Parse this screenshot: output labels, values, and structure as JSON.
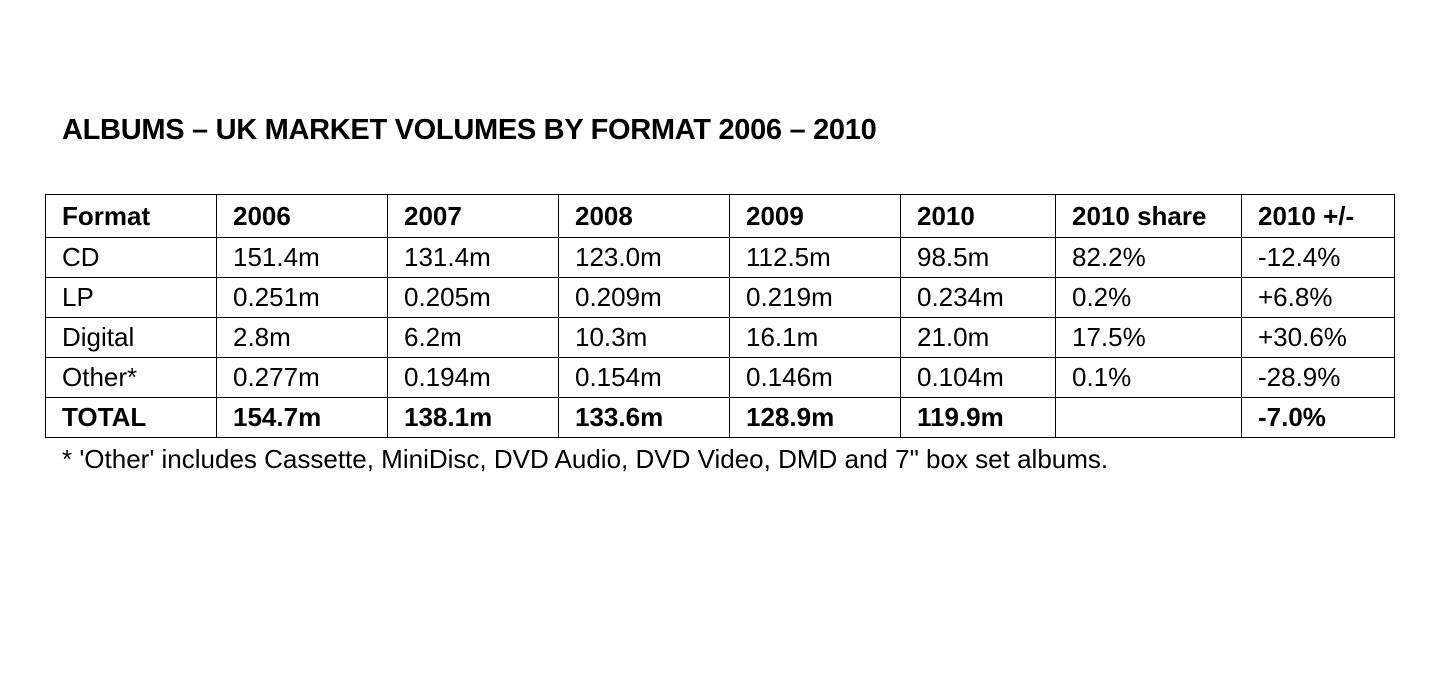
{
  "title": "ALBUMS – UK MARKET VOLUMES BY FORMAT 2006 – 2010",
  "table": {
    "headers": [
      "Format",
      "2006",
      "2007",
      "2008",
      "2009",
      "2010",
      "2010 share",
      "2010 +/-"
    ],
    "rows": [
      [
        "CD",
        "151.4m",
        "131.4m",
        "123.0m",
        "112.5m",
        "98.5m",
        "82.2%",
        "-12.4%"
      ],
      [
        "LP",
        "0.251m",
        "0.205m",
        "0.209m",
        "0.219m",
        "0.234m",
        "0.2%",
        "+6.8%"
      ],
      [
        "Digital",
        "2.8m",
        "6.2m",
        "10.3m",
        "16.1m",
        "21.0m",
        "17.5%",
        "+30.6%"
      ],
      [
        "Other*",
        "0.277m",
        "0.194m",
        "0.154m",
        "0.146m",
        "0.104m",
        "0.1%",
        "-28.9%"
      ]
    ],
    "total": [
      "TOTAL",
      "154.7m",
      "138.1m",
      "133.6m",
      "128.9m",
      "119.9m",
      "",
      "-7.0%"
    ]
  },
  "footnote": "* 'Other' includes Cassette, MiniDisc, DVD Audio, DVD Video, DMD and 7\" box set albums."
}
